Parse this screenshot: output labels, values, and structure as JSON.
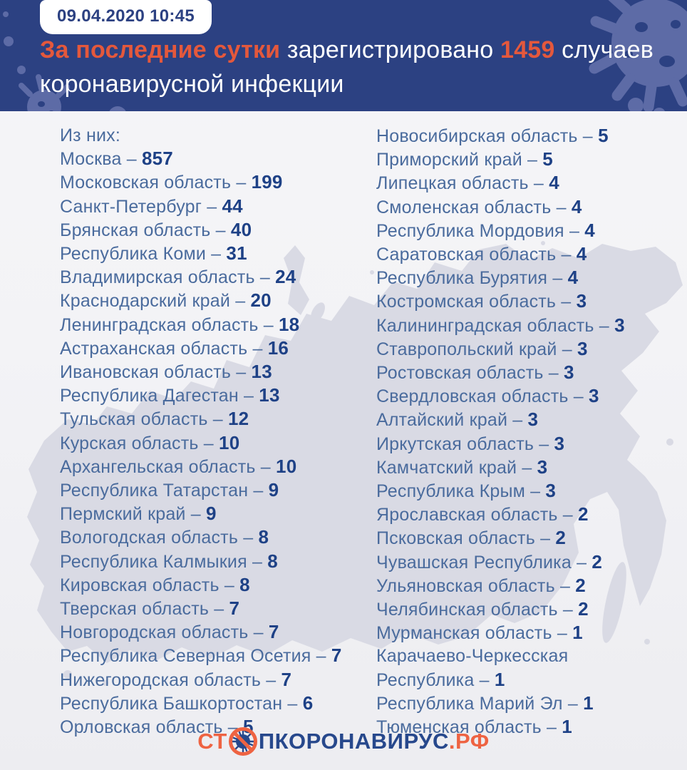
{
  "colors": {
    "header_bg": "#2c4182",
    "header_blob": "#5d6ba6",
    "accent_orange": "#e4583c",
    "title_white": "#ffffff",
    "region_name": "#4a6b9d",
    "region_value": "#1e4186",
    "map_fill": "#d9dae4",
    "body_bg": "#f3f3f6",
    "badge_bg": "#ffffff",
    "badge_text": "#2c4182",
    "logo_blue": "#27488c",
    "logo_orange": "#ee6342"
  },
  "header": {
    "timestamp": "09.04.2020 10:45",
    "headline": {
      "accent_lead": "За последние сутки",
      "text_mid": " зарегистрировано ",
      "accent_count": "1459",
      "text_tail": " случаев",
      "line2": "коронавирусной инфекции"
    }
  },
  "list": {
    "columns": {
      "left": [
        {
          "name": "Из них:",
          "value": null
        },
        {
          "name": "Москва",
          "value": "857"
        },
        {
          "name": "Московская область",
          "value": "199"
        },
        {
          "name": "Санкт-Петербург",
          "value": "44"
        },
        {
          "name": "Брянская область",
          "value": "40"
        },
        {
          "name": "Республика Коми",
          "value": "31"
        },
        {
          "name": "Владимирская область",
          "value": "24"
        },
        {
          "name": "Краснодарский край",
          "value": "20"
        },
        {
          "name": "Ленинградская область",
          "value": "18"
        },
        {
          "name": "Астраханская область",
          "value": "16"
        },
        {
          "name": "Ивановская область",
          "value": "13"
        },
        {
          "name": "Республика Дагестан",
          "value": "13"
        },
        {
          "name": "Тульская область",
          "value": "12"
        },
        {
          "name": "Курская область",
          "value": "10"
        },
        {
          "name": "Архангельская область",
          "value": "10"
        },
        {
          "name": "Республика Татарстан",
          "value": "9"
        },
        {
          "name": "Пермский край",
          "value": "9"
        },
        {
          "name": "Вологодская область",
          "value": "8"
        },
        {
          "name": "Республика Калмыкия",
          "value": "8"
        },
        {
          "name": "Кировская область",
          "value": "8"
        },
        {
          "name": "Тверская область",
          "value": "7"
        },
        {
          "name": "Новгородская область",
          "value": "7"
        },
        {
          "name": "Республика Северная Осетия",
          "value": "7"
        },
        {
          "name": "Нижегородская область",
          "value": "7"
        },
        {
          "name": "Республика Башкортостан",
          "value": "6"
        },
        {
          "name": "Орловская область",
          "value": "5"
        }
      ],
      "right": [
        {
          "name": "Новосибирская область",
          "value": "5"
        },
        {
          "name": "Приморский край",
          "value": "5"
        },
        {
          "name": "Липецкая область",
          "value": "4"
        },
        {
          "name": "Смоленская область",
          "value": "4"
        },
        {
          "name": "Республика Мордовия",
          "value": "4"
        },
        {
          "name": "Саратовская область",
          "value": "4"
        },
        {
          "name": "Республика Бурятия",
          "value": "4"
        },
        {
          "name": "Костромская область",
          "value": "3"
        },
        {
          "name": "Калининградская область",
          "value": "3"
        },
        {
          "name": "Ставропольский край",
          "value": "3"
        },
        {
          "name": "Ростовская область",
          "value": "3"
        },
        {
          "name": "Свердловская область",
          "value": "3"
        },
        {
          "name": "Алтайский край",
          "value": "3"
        },
        {
          "name": "Иркутская область",
          "value": "3"
        },
        {
          "name": "Камчатский край",
          "value": "3"
        },
        {
          "name": "Республика Крым",
          "value": "3"
        },
        {
          "name": "Ярославская область",
          "value": "2"
        },
        {
          "name": "Псковская область",
          "value": "2"
        },
        {
          "name": "Чувашская Республика",
          "value": "2"
        },
        {
          "name": "Ульяновская область",
          "value": "2"
        },
        {
          "name": "Челябинская область",
          "value": "2"
        },
        {
          "name": "Мурманская область",
          "value": "1"
        },
        {
          "name": "Карачаево-Черкесская",
          "value": null
        },
        {
          "name": "Республика",
          "value": "1"
        },
        {
          "name": "Республика Марий Эл",
          "value": "1"
        },
        {
          "name": "Тюменская область",
          "value": "1"
        }
      ]
    }
  },
  "footer": {
    "logo_prefix": "СТ",
    "logo_middle": "ПКОРОНАВИРУС",
    "logo_suffix": ".РФ"
  }
}
